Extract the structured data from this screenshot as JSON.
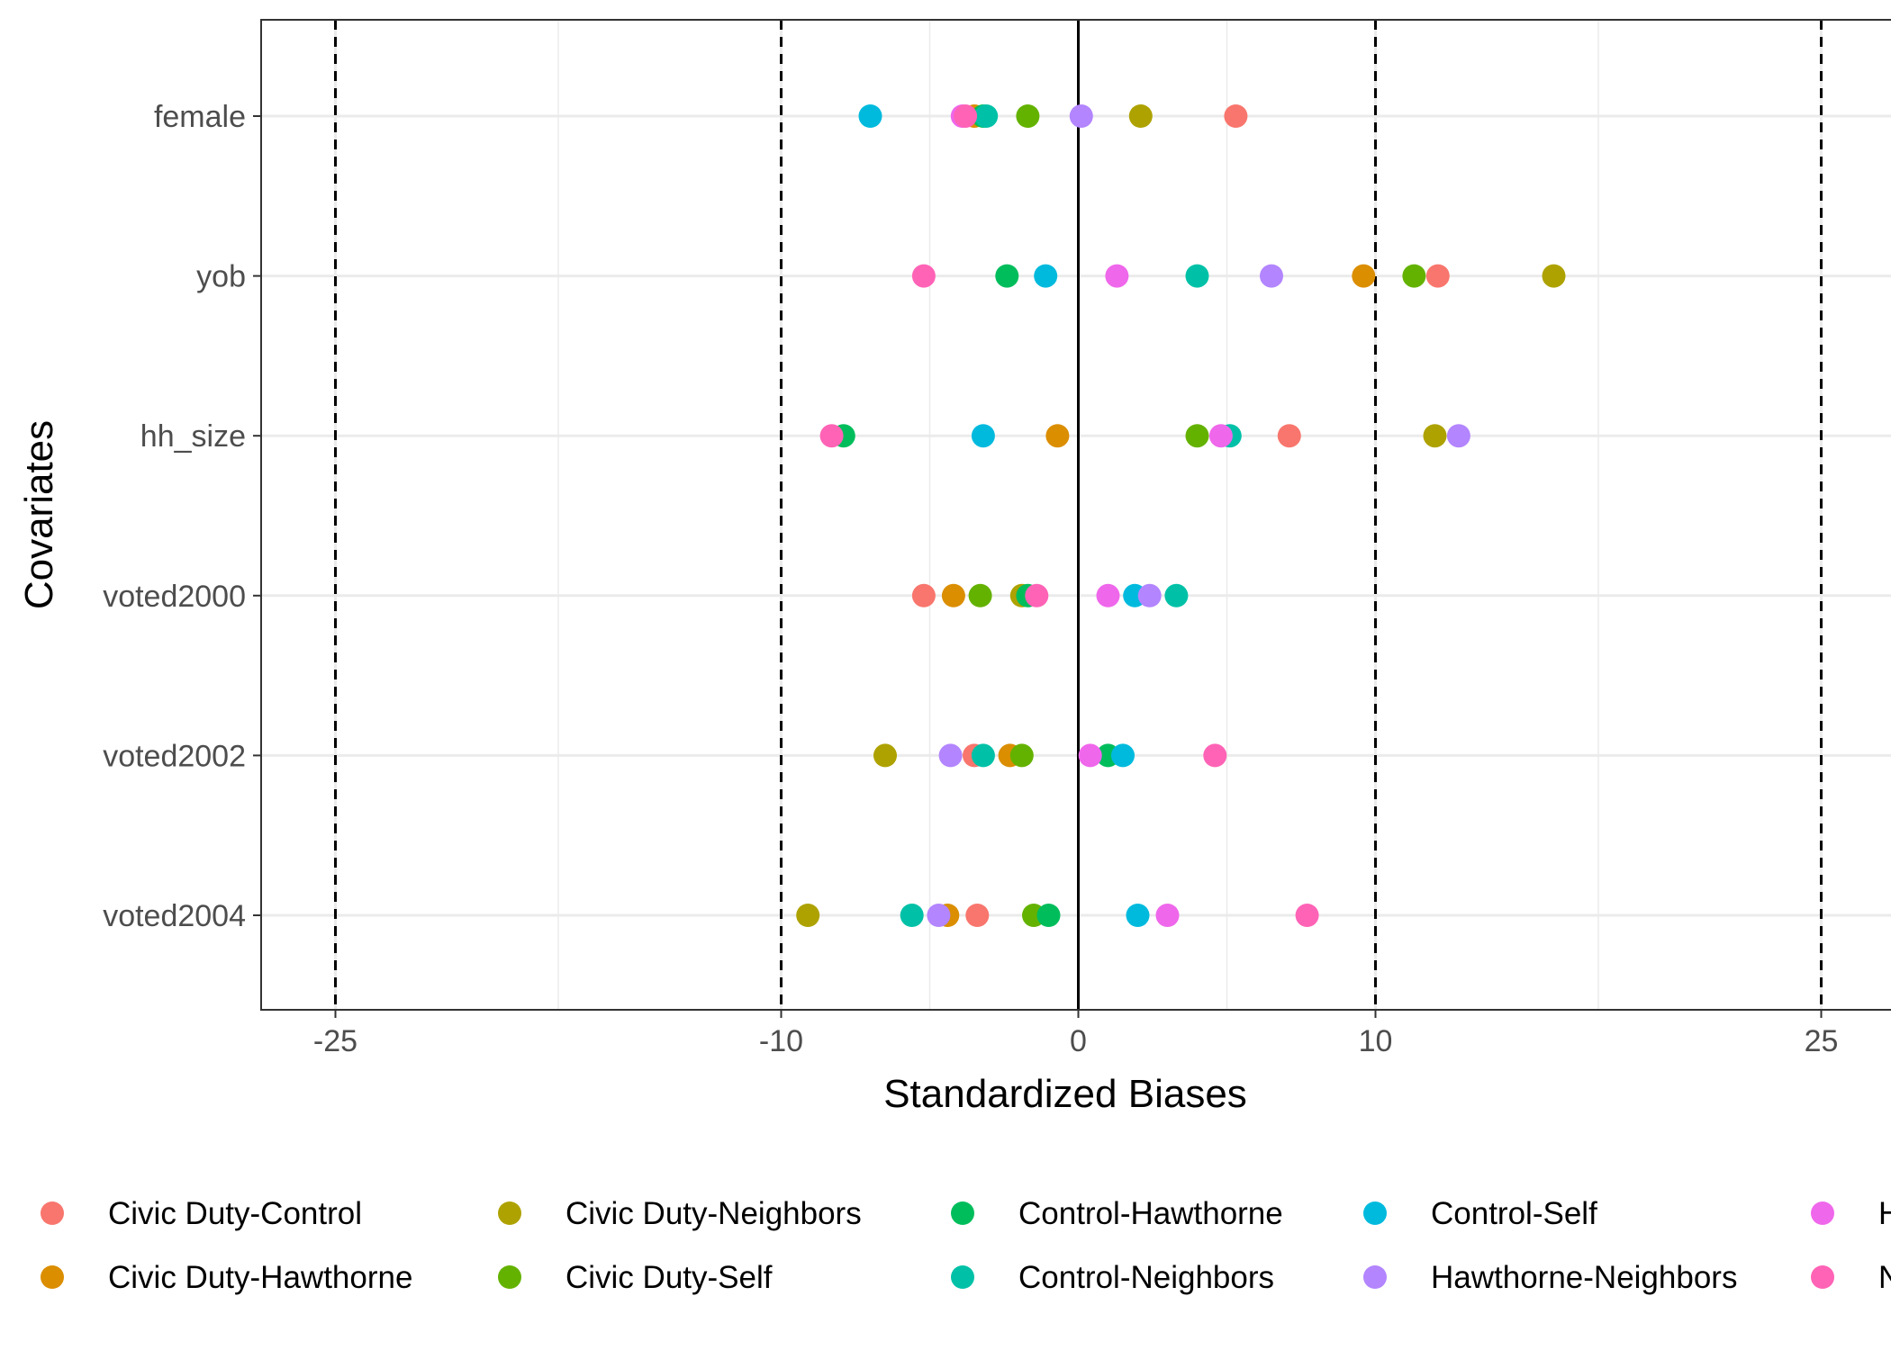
{
  "chart_data": {
    "type": "scatter",
    "title": "",
    "xlabel": "Standardized Biases",
    "ylabel": "Covariates",
    "xlim": [
      -27.5,
      27.5
    ],
    "x_ticks": [
      -25,
      -10,
      0,
      10,
      25
    ],
    "x_tick_labels": [
      "-25",
      "-10",
      "0",
      "10",
      "25"
    ],
    "categories": [
      "female",
      "yob",
      "hh_size",
      "voted2000",
      "voted2002",
      "voted2004"
    ],
    "reference_lines": {
      "solid": [
        0
      ],
      "dashed": [
        -25,
        -10,
        10,
        25
      ]
    },
    "grid": true,
    "legend_position": "bottom",
    "series": [
      {
        "name": "Civic Duty-Control",
        "color": "#F8766D",
        "values": [
          5.3,
          12.1,
          7.1,
          -5.2,
          -3.5,
          -3.4
        ]
      },
      {
        "name": "Civic Duty-Hawthorne",
        "color": "#DB8E00",
        "values": [
          -3.5,
          9.6,
          -0.7,
          -4.2,
          -2.3,
          -4.4
        ]
      },
      {
        "name": "Civic Duty-Neighbors",
        "color": "#AEA200",
        "values": [
          2.1,
          16.0,
          12.0,
          -1.9,
          -6.5,
          -9.1
        ]
      },
      {
        "name": "Civic Duty-Self",
        "color": "#64B200",
        "values": [
          -1.7,
          11.3,
          4.0,
          -3.3,
          -1.9,
          -1.5
        ]
      },
      {
        "name": "Control-Hawthorne",
        "color": "#00BD5C",
        "values": [
          -3.2,
          -2.4,
          -7.9,
          -1.7,
          1.0,
          -1.0
        ]
      },
      {
        "name": "Control-Neighbors",
        "color": "#00C1A7",
        "values": [
          -3.1,
          4.0,
          5.1,
          3.3,
          -3.2,
          -5.6
        ]
      },
      {
        "name": "Control-Self",
        "color": "#00BADE",
        "values": [
          -7.0,
          -1.1,
          -3.2,
          1.9,
          1.5,
          2.0
        ]
      },
      {
        "name": "Hawthorne-Neighbors",
        "color": "#B385FF",
        "values": [
          0.1,
          6.5,
          12.8,
          2.4,
          -4.3,
          -4.7
        ]
      },
      {
        "name": "Hawthorne-Self",
        "color": "#EF67EB",
        "values": [
          -3.9,
          1.3,
          4.8,
          1.0,
          0.4,
          3.0
        ]
      },
      {
        "name": "Neighbors-Self",
        "color": "#FF63B6",
        "values": [
          -3.8,
          -5.2,
          -8.3,
          -1.4,
          4.6,
          7.7
        ]
      }
    ],
    "legend_labels_visible": [
      "Civic Duty-Control",
      "Civic Duty-Hawthorne",
      "Civic Duty-Neighbors",
      "Civic Duty-Self",
      "Control-Hawthorne",
      "Control-Neighbors",
      "Control-Self",
      "Hawthorne-Neighbors",
      "H",
      "N"
    ]
  }
}
